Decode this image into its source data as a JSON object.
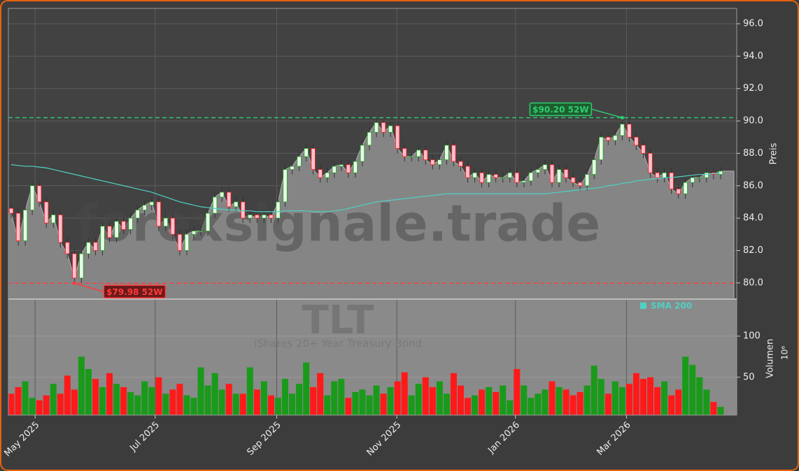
{
  "chart_data": {
    "type": "candlestick",
    "watermark": "forexsignale.trade",
    "symbol": "TLT",
    "name": "iShares 20+ Year Treasury Bond",
    "ylabel": "Preis",
    "y2label": "Volumen",
    "y2scale_label": "10⁶",
    "xlim": [
      -0.4,
      103.3
    ],
    "xticks": [
      {
        "value": 3.4,
        "label": "May 2025"
      },
      {
        "value": 20.5,
        "label": "Jul 2025"
      },
      {
        "value": 37.8,
        "label": "Sep 2025"
      },
      {
        "value": 54.9,
        "label": "Nov 2025"
      },
      {
        "value": 71.8,
        "label": "Jan 2026"
      },
      {
        "value": 87.6,
        "label": "Mar 2026"
      }
    ],
    "ylim": [
      79.0,
      96.95
    ],
    "yticks": [
      {
        "value": 80,
        "label": "80.0"
      },
      {
        "value": 82,
        "label": "82.0"
      },
      {
        "value": 84,
        "label": "84.0"
      },
      {
        "value": 86,
        "label": "86.0"
      },
      {
        "value": 88,
        "label": "88.0"
      },
      {
        "value": 90,
        "label": "90.0"
      },
      {
        "value": 92,
        "label": "92.0"
      },
      {
        "value": 94,
        "label": "94.0"
      },
      {
        "value": 96,
        "label": "96.0"
      }
    ],
    "y2lim": [
      4,
      145
    ],
    "y2ticks": [
      50,
      100
    ],
    "grid": true,
    "up_color": "#2ca02c",
    "down_color": "#ff1a1a",
    "open": [
      84.6,
      84.3,
      82.6,
      84.5,
      86.0,
      85.0,
      83.7,
      84.2,
      82.5,
      81.8,
      80.3,
      81.8,
      82.5,
      82.0,
      83.5,
      82.8,
      83.8,
      83.3,
      84.0,
      84.5,
      84.8,
      85.0,
      83.5,
      84.0,
      83.0,
      82.0,
      83.0,
      83.2,
      83.2,
      84.3,
      85.3,
      85.6,
      84.7,
      85.0,
      84.0,
      84.2,
      84.0,
      84.2,
      84.0,
      85.0,
      87.0,
      87.2,
      87.8,
      88.3,
      87.0,
      86.5,
      86.8,
      87.2,
      87.3,
      86.8,
      87.5,
      88.5,
      89.3,
      89.9,
      89.3,
      89.7,
      88.3,
      87.8,
      87.8,
      88.2,
      87.6,
      87.3,
      87.6,
      88.5,
      87.5,
      87.2,
      86.5,
      86.8,
      86.2,
      86.7,
      86.5,
      86.5,
      86.8,
      86.2,
      86.3,
      86.8,
      87.0,
      87.3,
      86.2,
      87.0,
      86.5,
      86.2,
      86.0,
      86.7,
      87.6,
      89.0,
      88.8,
      89.1,
      89.8,
      89.0,
      88.5,
      88.0,
      86.8,
      86.5,
      86.8,
      85.8,
      85.5,
      86.2,
      86.5,
      86.5,
      86.8,
      86.7
    ],
    "high": [
      84.9,
      84.6,
      84.8,
      86.3,
      86.3,
      85.3,
      84.5,
      84.5,
      82.8,
      82.1,
      82.1,
      82.8,
      82.8,
      83.8,
      83.8,
      84.1,
      84.1,
      84.3,
      84.8,
      85.1,
      85.3,
      85.3,
      84.3,
      84.3,
      83.3,
      83.3,
      83.5,
      83.5,
      84.6,
      85.6,
      85.9,
      85.9,
      85.3,
      85.3,
      84.5,
      84.5,
      84.5,
      84.5,
      85.3,
      87.3,
      87.5,
      88.1,
      88.6,
      88.6,
      87.3,
      87.1,
      87.5,
      87.6,
      87.6,
      87.8,
      88.8,
      89.6,
      90.1,
      90.1,
      90.0,
      90.0,
      88.6,
      88.1,
      88.5,
      88.5,
      87.9,
      87.9,
      88.8,
      88.8,
      87.8,
      87.5,
      87.1,
      87.1,
      87.0,
      87.0,
      86.8,
      87.1,
      87.1,
      86.6,
      87.1,
      87.3,
      87.6,
      87.6,
      87.3,
      87.3,
      86.8,
      86.5,
      87.0,
      87.9,
      89.3,
      89.3,
      89.4,
      90.2,
      90.1,
      89.3,
      88.8,
      88.3,
      87.1,
      87.1,
      87.1,
      86.1,
      86.5,
      86.8,
      86.8,
      87.1,
      87.1,
      87.2
    ],
    "low": [
      84.0,
      82.3,
      82.3,
      84.2,
      84.7,
      83.4,
      83.4,
      82.2,
      81.5,
      79.98,
      80.0,
      81.5,
      81.7,
      81.7,
      82.5,
      82.5,
      83.0,
      83.0,
      83.7,
      84.2,
      84.5,
      83.2,
      83.2,
      82.7,
      81.7,
      81.7,
      82.7,
      82.9,
      82.9,
      84.0,
      85.0,
      84.4,
      84.4,
      83.7,
      83.7,
      83.7,
      83.7,
      83.7,
      83.7,
      84.7,
      86.7,
      86.9,
      87.5,
      86.7,
      86.2,
      86.2,
      86.5,
      86.9,
      86.5,
      86.5,
      87.2,
      88.2,
      89.0,
      89.0,
      89.0,
      88.0,
      87.5,
      87.5,
      87.5,
      87.3,
      87.0,
      87.0,
      87.3,
      87.2,
      86.9,
      86.2,
      86.2,
      85.9,
      85.9,
      86.2,
      86.2,
      86.2,
      85.9,
      85.9,
      86.0,
      86.5,
      86.7,
      85.9,
      85.9,
      86.2,
      85.9,
      85.7,
      85.7,
      86.4,
      87.3,
      88.5,
      88.5,
      88.8,
      88.7,
      88.2,
      87.7,
      86.5,
      86.2,
      86.2,
      85.5,
      85.2,
      85.2,
      85.9,
      86.2,
      86.2,
      86.4,
      86.4
    ],
    "close": [
      84.3,
      82.6,
      84.5,
      86.0,
      85.0,
      83.7,
      84.2,
      82.5,
      81.8,
      80.3,
      81.8,
      82.5,
      82.0,
      83.5,
      82.8,
      83.8,
      83.3,
      84.0,
      84.5,
      84.8,
      85.0,
      83.5,
      84.0,
      83.0,
      82.0,
      83.0,
      83.2,
      83.2,
      84.3,
      85.3,
      85.6,
      84.7,
      85.0,
      84.0,
      84.2,
      84.0,
      84.2,
      84.0,
      85.0,
      87.0,
      87.2,
      87.8,
      88.3,
      87.0,
      86.5,
      86.8,
      87.2,
      87.3,
      86.8,
      87.5,
      88.5,
      89.3,
      89.9,
      89.3,
      89.7,
      88.3,
      87.8,
      87.8,
      88.2,
      87.6,
      87.3,
      87.6,
      88.5,
      87.5,
      87.2,
      86.5,
      86.8,
      86.2,
      86.7,
      86.5,
      86.5,
      86.8,
      86.2,
      86.3,
      86.8,
      87.0,
      87.3,
      86.2,
      87.0,
      86.5,
      86.2,
      86.0,
      86.7,
      87.6,
      89.0,
      88.8,
      89.1,
      89.8,
      89.0,
      88.5,
      88.0,
      86.8,
      86.5,
      86.8,
      85.8,
      85.5,
      86.2,
      86.5,
      86.5,
      86.8,
      86.7,
      86.9
    ],
    "volume": [
      30,
      38,
      45,
      25,
      22,
      28,
      42,
      30,
      52,
      35,
      75,
      60,
      48,
      38,
      55,
      42,
      38,
      32,
      28,
      45,
      38,
      50,
      30,
      35,
      42,
      28,
      25,
      62,
      40,
      55,
      35,
      42,
      30,
      30,
      62,
      35,
      45,
      28,
      25,
      48,
      30,
      42,
      68,
      38,
      55,
      28,
      45,
      48,
      25,
      32,
      35,
      28,
      40,
      30,
      38,
      45,
      56,
      28,
      42,
      50,
      38,
      45,
      30,
      55,
      40,
      25,
      28,
      35,
      38,
      32,
      40,
      22,
      60,
      40,
      25,
      30,
      35,
      45,
      38,
      35,
      28,
      32,
      40,
      64,
      48,
      30,
      45,
      38,
      42,
      55,
      48,
      50,
      38,
      45,
      28,
      35,
      75,
      65,
      50,
      35,
      20,
      14
    ],
    "sma": {
      "name": "SMA 200",
      "color": "#4fd1c5",
      "values": [
        87.3,
        87.25,
        87.2,
        87.2,
        87.15,
        87.1,
        87.0,
        86.9,
        86.8,
        86.7,
        86.6,
        86.5,
        86.4,
        86.3,
        86.2,
        86.1,
        86.0,
        85.9,
        85.8,
        85.7,
        85.6,
        85.45,
        85.3,
        85.15,
        85.0,
        84.9,
        84.8,
        84.7,
        84.65,
        84.6,
        84.55,
        84.5,
        84.5,
        84.45,
        84.45,
        84.4,
        84.4,
        84.4,
        84.4,
        84.45,
        84.45,
        84.45,
        84.45,
        84.4,
        84.4,
        84.4,
        84.45,
        84.5,
        84.6,
        84.7,
        84.8,
        84.9,
        85.0,
        85.05,
        85.1,
        85.15,
        85.2,
        85.25,
        85.3,
        85.35,
        85.4,
        85.45,
        85.5,
        85.5,
        85.5,
        85.5,
        85.5,
        85.5,
        85.5,
        85.5,
        85.5,
        85.5,
        85.5,
        85.5,
        85.5,
        85.5,
        85.5,
        85.55,
        85.6,
        85.65,
        85.7,
        85.75,
        85.8,
        85.85,
        85.9,
        86.0,
        86.05,
        86.15,
        86.2,
        86.3,
        86.35,
        86.4,
        86.45,
        86.5,
        86.5,
        86.55,
        86.6,
        86.65,
        86.7,
        86.7,
        86.75,
        86.8
      ]
    },
    "annotations": [
      {
        "text": "$90.20 52W",
        "value": 90.2,
        "color": "#2ecc71",
        "bg": "#1e5e2e"
      },
      {
        "text": "$79.98 52W",
        "value": 79.98,
        "color": "#ff3b3b",
        "bg": "#6a1a1a"
      }
    ]
  }
}
